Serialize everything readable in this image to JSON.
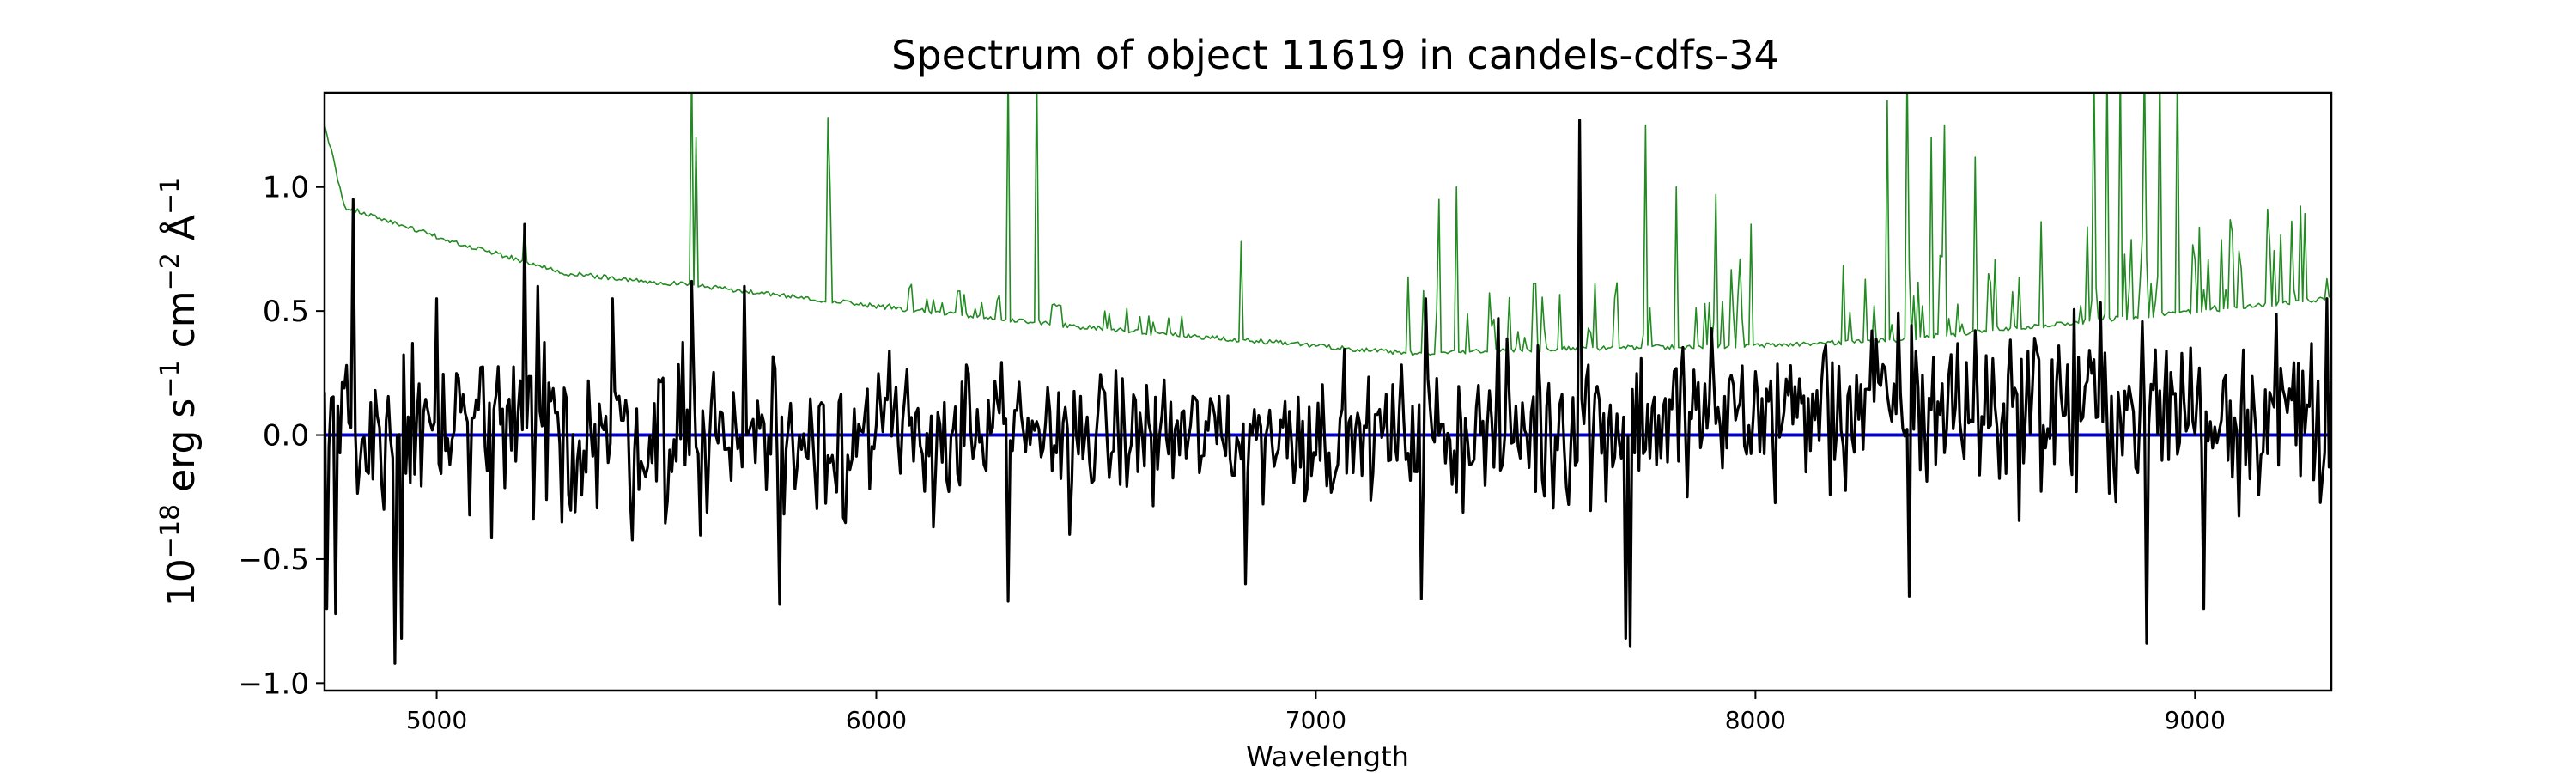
{
  "chart_data": {
    "type": "line",
    "title": "Spectrum of object 11619 in candels-cdfs-34",
    "xlabel": "Wavelength",
    "ylabel_parts": [
      "10",
      "−18",
      " erg s",
      "−1",
      " cm",
      "−2",
      " Å",
      "−1"
    ],
    "xlim": [
      4745,
      9310
    ],
    "ylim": [
      -1.03,
      1.38
    ],
    "x_ticks": [
      5000,
      6000,
      7000,
      8000,
      9000
    ],
    "x_tick_labels": [
      "5000",
      "6000",
      "7000",
      "8000",
      "9000"
    ],
    "y_ticks": [
      -1.0,
      -0.5,
      0.0,
      0.5,
      1.0
    ],
    "y_tick_labels": [
      "−1.0",
      "−0.5",
      "0.0",
      "0.5",
      "1.0"
    ],
    "grid": false,
    "series": [
      {
        "role": "flux",
        "color": "#000000",
        "step": 5,
        "x_start": 4745,
        "anchor_points": [
          [
            4750,
            -0.7
          ],
          [
            4760,
            0.15
          ],
          [
            4770,
            -0.72
          ],
          [
            4810,
            0.95
          ],
          [
            4880,
            -0.3
          ],
          [
            4905,
            -0.92
          ],
          [
            4920,
            -0.82
          ],
          [
            5000,
            0.55
          ],
          [
            5200,
            0.85
          ],
          [
            5230,
            0.6
          ],
          [
            5400,
            0.55
          ],
          [
            5580,
            0.62
          ],
          [
            5700,
            0.6
          ],
          [
            5780,
            -0.68
          ],
          [
            6300,
            -0.67
          ],
          [
            6840,
            -0.6
          ],
          [
            7240,
            -0.66
          ],
          [
            7250,
            0.55
          ],
          [
            7600,
            1.27
          ],
          [
            7705,
            -0.82
          ],
          [
            7715,
            -0.85
          ],
          [
            8350,
            -0.65
          ],
          [
            8890,
            -0.84
          ],
          [
            9020,
            -0.7
          ],
          [
            9300,
            0.55
          ]
        ],
        "noise_amplitude": [
          [
            4745,
            0.35
          ],
          [
            5500,
            0.33
          ],
          [
            6500,
            0.25
          ],
          [
            7200,
            0.22
          ],
          [
            7300,
            0.3
          ],
          [
            8000,
            0.32
          ],
          [
            8600,
            0.35
          ],
          [
            9310,
            0.35
          ]
        ],
        "mean_offset": [
          [
            4745,
            0.0
          ],
          [
            7200,
            0.0
          ],
          [
            7600,
            0.05
          ],
          [
            8300,
            0.12
          ],
          [
            8700,
            0.12
          ],
          [
            9310,
            0.1
          ]
        ]
      },
      {
        "role": "error",
        "color": "#228b22",
        "step": 5,
        "continuum": [
          [
            4745,
            1.25
          ],
          [
            4760,
            1.15
          ],
          [
            4790,
            0.92
          ],
          [
            5000,
            0.8
          ],
          [
            5300,
            0.65
          ],
          [
            5600,
            0.6
          ],
          [
            6000,
            0.52
          ],
          [
            6500,
            0.43
          ],
          [
            7000,
            0.36
          ],
          [
            7200,
            0.33
          ],
          [
            7600,
            0.35
          ],
          [
            8000,
            0.36
          ],
          [
            8300,
            0.38
          ],
          [
            8700,
            0.45
          ],
          [
            9310,
            0.55
          ]
        ],
        "peaks": [
          [
            5200,
            0.85
          ],
          [
            5578,
            1.5
          ],
          [
            5590,
            1.2
          ],
          [
            5890,
            1.28
          ],
          [
            5896,
            1.0
          ],
          [
            6300,
            1.5
          ],
          [
            6364,
            1.5
          ],
          [
            6830,
            0.78
          ],
          [
            7280,
            0.95
          ],
          [
            7320,
            1.0
          ],
          [
            7600,
            1.05
          ],
          [
            7750,
            1.25
          ],
          [
            7820,
            1.0
          ],
          [
            7910,
            0.97
          ],
          [
            7990,
            0.85
          ],
          [
            8300,
            1.35
          ],
          [
            8345,
            1.5
          ],
          [
            8400,
            1.2
          ],
          [
            8430,
            1.25
          ],
          [
            8500,
            1.12
          ],
          [
            8650,
            0.86
          ],
          [
            8770,
            1.5
          ],
          [
            8800,
            1.5
          ],
          [
            8830,
            1.5
          ],
          [
            8885,
            1.5
          ],
          [
            8920,
            1.5
          ],
          [
            8960,
            1.5
          ],
          [
            9300,
            0.63
          ]
        ],
        "forest_ranges": [
          [
            5900,
            6700,
            0.1
          ],
          [
            7200,
            7600,
            0.35
          ],
          [
            7600,
            8000,
            0.35
          ],
          [
            8200,
            8600,
            0.35
          ],
          [
            8700,
            9310,
            0.4
          ]
        ]
      },
      {
        "role": "zero",
        "color": "#0000cc",
        "values": [
          [
            4745,
            0.0
          ],
          [
            9310,
            0.0
          ]
        ]
      }
    ]
  }
}
